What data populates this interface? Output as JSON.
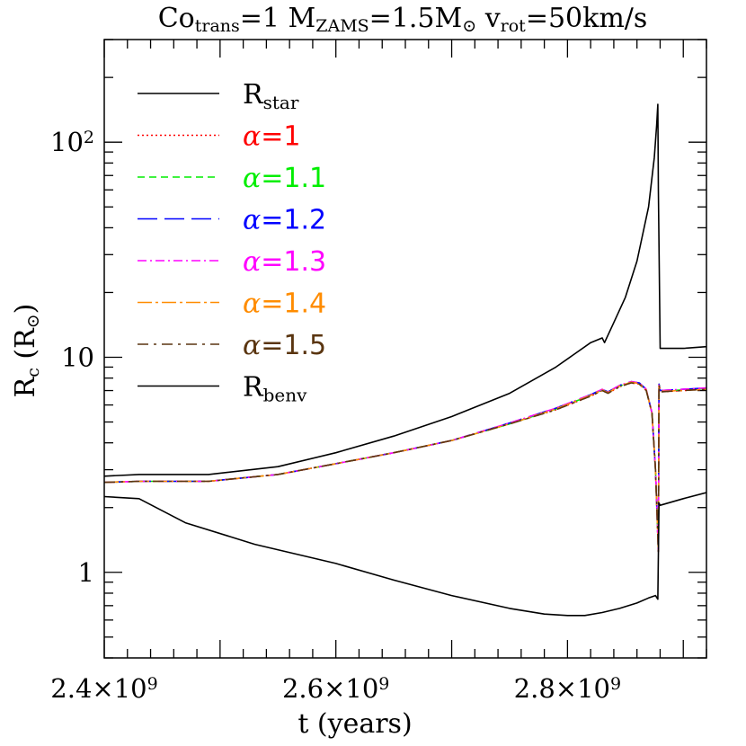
{
  "chart_data": {
    "type": "line",
    "title": {
      "parts": [
        {
          "text": "Co"
        },
        {
          "text": "trans",
          "sub": true
        },
        {
          "text": "=1   M"
        },
        {
          "text": "ZAMS",
          "sub": true
        },
        {
          "text": "=1.5M"
        },
        {
          "text": "⊙",
          "sub": true
        },
        {
          "text": " v"
        },
        {
          "text": "rot",
          "sub": true
        },
        {
          "text": "=50km/s"
        }
      ]
    },
    "xlabel": "t (years)",
    "ylabel": {
      "parts": [
        {
          "text": "R"
        },
        {
          "text": "c",
          "sub": true
        },
        {
          "text": " (R"
        },
        {
          "text": "⊙",
          "sub": true
        },
        {
          "text": ")"
        }
      ]
    },
    "x_scale": "linear",
    "y_scale": "log",
    "xlim": [
      2400000000,
      2920000000
    ],
    "ylim": [
      0.4,
      300
    ],
    "x_ticks": [
      {
        "value": 2400000000,
        "label": "2.4×10",
        "exp": "9"
      },
      {
        "value": 2600000000,
        "label": "2.6×10",
        "exp": "9"
      },
      {
        "value": 2800000000,
        "label": "2.8×10",
        "exp": "9"
      }
    ],
    "y_ticks": [
      {
        "value": 1,
        "label": "1",
        "exp": ""
      },
      {
        "value": 10,
        "label": "10",
        "exp": ""
      },
      {
        "value": 100,
        "label": "10",
        "exp": "2"
      }
    ],
    "grid": false,
    "legend_position": "top-left",
    "series": [
      {
        "name": "R_star",
        "legend_main": "R",
        "legend_sub": "star",
        "color": "#000000",
        "style": "solid",
        "x": [
          2400000000,
          2430000000,
          2490000000,
          2550000000,
          2600000000,
          2650000000,
          2700000000,
          2750000000,
          2790000000,
          2820000000,
          2830000000,
          2832000000,
          2840000000,
          2850000000,
          2860000000,
          2870000000,
          2875000000,
          2877000000,
          2878000000,
          2878500000,
          2880000000,
          2900000000,
          2920000000
        ],
        "y": [
          2.8,
          2.85,
          2.85,
          3.1,
          3.6,
          4.3,
          5.3,
          6.8,
          9.0,
          11.7,
          12.3,
          11.7,
          14.5,
          19.0,
          28.0,
          50.0,
          85.0,
          120.0,
          150.0,
          60.0,
          11.0,
          11.0,
          11.2
        ]
      },
      {
        "name": "α=1",
        "legend_main": "α=1",
        "legend_sub": "",
        "color": "#ff0000",
        "style": "dotted",
        "x": [
          2400000000,
          2430000000,
          2490000000,
          2550000000,
          2600000000,
          2650000000,
          2700000000,
          2750000000,
          2790000000,
          2820000000,
          2830000000,
          2835000000,
          2845000000,
          2855000000,
          2862000000,
          2868000000,
          2873000000,
          2876000000,
          2878500000,
          2879000000,
          2880000000,
          2900000000,
          2920000000
        ],
        "y": [
          2.62,
          2.65,
          2.65,
          2.85,
          3.2,
          3.6,
          4.1,
          4.9,
          5.7,
          6.6,
          7.0,
          6.8,
          7.3,
          7.6,
          7.5,
          7.0,
          5.5,
          3.0,
          1.25,
          7.5,
          6.9,
          7.0,
          7.1
        ]
      },
      {
        "name": "α=1.1",
        "legend_main": "α=1.1",
        "legend_sub": "",
        "color": "#00ee00",
        "style": "short-dash",
        "x": [
          2400000000,
          2430000000,
          2490000000,
          2550000000,
          2600000000,
          2650000000,
          2700000000,
          2750000000,
          2790000000,
          2820000000,
          2830000000,
          2835000000,
          2845000000,
          2855000000,
          2862000000,
          2868000000,
          2873000000,
          2876000000,
          2878500000,
          2879000000,
          2880000000,
          2900000000,
          2920000000
        ],
        "y": [
          2.62,
          2.65,
          2.65,
          2.85,
          3.2,
          3.6,
          4.1,
          4.9,
          5.75,
          6.65,
          7.05,
          6.85,
          7.35,
          7.65,
          7.55,
          7.05,
          5.5,
          3.0,
          1.25,
          7.5,
          6.95,
          7.05,
          7.15
        ]
      },
      {
        "name": "α=1.2",
        "legend_main": "α=1.2",
        "legend_sub": "",
        "color": "#0000ff",
        "style": "long-dash",
        "x": [
          2400000000,
          2430000000,
          2490000000,
          2550000000,
          2600000000,
          2650000000,
          2700000000,
          2750000000,
          2790000000,
          2820000000,
          2830000000,
          2835000000,
          2845000000,
          2855000000,
          2862000000,
          2868000000,
          2873000000,
          2876000000,
          2878500000,
          2879000000,
          2880000000,
          2900000000,
          2920000000
        ],
        "y": [
          2.62,
          2.65,
          2.65,
          2.85,
          3.2,
          3.6,
          4.1,
          4.95,
          5.8,
          6.7,
          7.1,
          6.9,
          7.4,
          7.7,
          7.6,
          7.1,
          5.5,
          3.0,
          1.25,
          7.5,
          7.0,
          7.1,
          7.2
        ]
      },
      {
        "name": "α=1.3",
        "legend_main": "α=1.3",
        "legend_sub": "",
        "color": "#ff00ff",
        "style": "dash-dot",
        "x": [
          2400000000,
          2430000000,
          2490000000,
          2550000000,
          2600000000,
          2650000000,
          2700000000,
          2750000000,
          2790000000,
          2820000000,
          2830000000,
          2835000000,
          2845000000,
          2855000000,
          2862000000,
          2868000000,
          2873000000,
          2876000000,
          2878500000,
          2879000000,
          2880000000,
          2900000000,
          2920000000
        ],
        "y": [
          2.62,
          2.65,
          2.65,
          2.85,
          3.2,
          3.6,
          4.1,
          4.95,
          5.8,
          6.7,
          7.1,
          6.9,
          7.4,
          7.7,
          7.6,
          7.1,
          5.5,
          3.0,
          1.25,
          7.5,
          7.0,
          7.1,
          7.2
        ]
      },
      {
        "name": "α=1.4",
        "legend_main": "α=1.4",
        "legend_sub": "",
        "color": "#ff8c00",
        "style": "long-dash-dot",
        "x": [
          2400000000,
          2430000000,
          2490000000,
          2550000000,
          2600000000,
          2650000000,
          2700000000,
          2750000000,
          2790000000,
          2820000000,
          2830000000,
          2835000000,
          2845000000,
          2855000000,
          2862000000,
          2868000000,
          2873000000,
          2876000000,
          2878500000,
          2879000000,
          2880000000,
          2900000000,
          2920000000
        ],
        "y": [
          2.62,
          2.65,
          2.65,
          2.85,
          3.2,
          3.6,
          4.1,
          4.9,
          5.75,
          6.65,
          7.05,
          6.85,
          7.35,
          7.65,
          7.55,
          7.05,
          5.5,
          3.0,
          1.25,
          7.5,
          6.95,
          7.0,
          7.1
        ]
      },
      {
        "name": "α=1.5",
        "legend_main": "α=1.5",
        "legend_sub": "",
        "color": "#5a3510",
        "style": "dash-dot-sparse",
        "x": [
          2400000000,
          2430000000,
          2490000000,
          2550000000,
          2600000000,
          2650000000,
          2700000000,
          2750000000,
          2790000000,
          2820000000,
          2830000000,
          2835000000,
          2845000000,
          2855000000,
          2862000000,
          2868000000,
          2873000000,
          2876000000,
          2878500000,
          2879000000,
          2880000000,
          2900000000,
          2920000000
        ],
        "y": [
          2.62,
          2.65,
          2.65,
          2.85,
          3.2,
          3.6,
          4.1,
          4.9,
          5.7,
          6.6,
          7.0,
          6.8,
          7.3,
          7.6,
          7.5,
          7.0,
          5.5,
          3.0,
          1.25,
          7.5,
          6.9,
          7.0,
          7.1
        ]
      },
      {
        "name": "R_benv",
        "legend_main": "R",
        "legend_sub": "benv",
        "color": "#000000",
        "style": "solid",
        "x": [
          2400000000,
          2430000000,
          2470000000,
          2530000000,
          2600000000,
          2650000000,
          2700000000,
          2750000000,
          2780000000,
          2800000000,
          2815000000,
          2830000000,
          2845000000,
          2860000000,
          2870000000,
          2876000000,
          2878000000,
          2879000000,
          2880000000,
          2900000000,
          2920000000
        ],
        "y": [
          2.25,
          2.2,
          1.7,
          1.35,
          1.1,
          0.92,
          0.78,
          0.68,
          0.64,
          0.63,
          0.63,
          0.65,
          0.68,
          0.72,
          0.76,
          0.78,
          0.75,
          2.1,
          2.05,
          2.2,
          2.35
        ]
      }
    ]
  }
}
